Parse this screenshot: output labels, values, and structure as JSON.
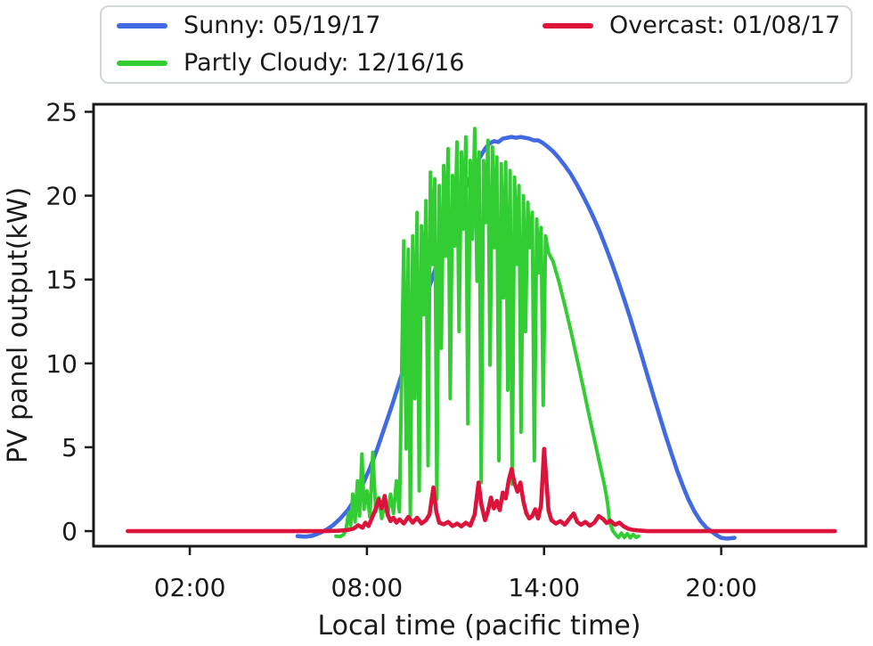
{
  "legend": {
    "items": [
      {
        "label": "Sunny: 05/19/17",
        "color": "#4169e1"
      },
      {
        "label": "Overcast: 01/08/17",
        "color": "#dc143c"
      },
      {
        "label": "Partly Cloudy: 12/16/16",
        "color": "#32cd32"
      }
    ]
  },
  "chart_data": {
    "type": "line",
    "title": "",
    "xlabel": "Local time (pacific time)",
    "ylabel": "PV panel output(kW)",
    "xlim": [
      -1.26,
      24.9
    ],
    "ylim": [
      -0.9,
      25.45
    ],
    "grid": false,
    "legend_position": "top",
    "axis_color": "#1a1a1a",
    "x_ticks": [
      {
        "value": 2,
        "label": "02:00"
      },
      {
        "value": 8,
        "label": "08:00"
      },
      {
        "value": 14,
        "label": "14:00"
      },
      {
        "value": 20,
        "label": "20:00"
      }
    ],
    "y_ticks": [
      {
        "value": 0,
        "label": "0"
      },
      {
        "value": 5,
        "label": "5"
      },
      {
        "value": 10,
        "label": "10"
      },
      {
        "value": 15,
        "label": "15"
      },
      {
        "value": 20,
        "label": "20"
      },
      {
        "value": 25,
        "label": "25"
      }
    ],
    "series": [
      {
        "name": "Sunny: 05/19/17",
        "color": "#4169e1",
        "width": 4.6,
        "points": [
          [
            5.65,
            -0.3
          ],
          [
            5.9,
            -0.33
          ],
          [
            6.15,
            -0.28
          ],
          [
            6.35,
            -0.15
          ],
          [
            6.6,
            0.05
          ],
          [
            6.85,
            0.35
          ],
          [
            7.1,
            0.75
          ],
          [
            7.35,
            1.25
          ],
          [
            7.6,
            1.9
          ],
          [
            7.85,
            2.75
          ],
          [
            8.1,
            3.75
          ],
          [
            8.35,
            4.9
          ],
          [
            8.6,
            6.2
          ],
          [
            8.85,
            7.5
          ],
          [
            9.1,
            8.9
          ],
          [
            9.35,
            10.3
          ],
          [
            9.6,
            11.7
          ],
          [
            9.85,
            13.1
          ],
          [
            10.1,
            14.5
          ],
          [
            10.35,
            15.8
          ],
          [
            10.6,
            17.1
          ],
          [
            10.85,
            18.3
          ],
          [
            11.1,
            19.4
          ],
          [
            11.35,
            20.5
          ],
          [
            11.6,
            21.5
          ],
          [
            11.8,
            22.2
          ],
          [
            12.0,
            22.8
          ],
          [
            12.15,
            23.1
          ],
          [
            12.3,
            23.25
          ],
          [
            12.45,
            23.2
          ],
          [
            12.6,
            23.4
          ],
          [
            12.75,
            23.45
          ],
          [
            12.9,
            23.5
          ],
          [
            13.05,
            23.45
          ],
          [
            13.2,
            23.5
          ],
          [
            13.35,
            23.45
          ],
          [
            13.5,
            23.4
          ],
          [
            13.65,
            23.3
          ],
          [
            13.8,
            23.3
          ],
          [
            13.95,
            23.15
          ],
          [
            14.1,
            22.95
          ],
          [
            14.3,
            22.65
          ],
          [
            14.5,
            22.25
          ],
          [
            14.7,
            21.8
          ],
          [
            14.9,
            21.3
          ],
          [
            15.1,
            20.7
          ],
          [
            15.3,
            20.05
          ],
          [
            15.5,
            19.35
          ],
          [
            15.7,
            18.6
          ],
          [
            15.9,
            17.8
          ],
          [
            16.1,
            16.9
          ],
          [
            16.3,
            15.95
          ],
          [
            16.5,
            14.95
          ],
          [
            16.7,
            13.9
          ],
          [
            16.9,
            12.8
          ],
          [
            17.1,
            11.65
          ],
          [
            17.3,
            10.5
          ],
          [
            17.5,
            9.3
          ],
          [
            17.7,
            8.1
          ],
          [
            17.9,
            6.95
          ],
          [
            18.1,
            5.8
          ],
          [
            18.3,
            4.7
          ],
          [
            18.5,
            3.65
          ],
          [
            18.7,
            2.7
          ],
          [
            18.9,
            1.85
          ],
          [
            19.1,
            1.15
          ],
          [
            19.3,
            0.6
          ],
          [
            19.5,
            0.2
          ],
          [
            19.7,
            -0.05
          ],
          [
            19.85,
            -0.25
          ],
          [
            20.0,
            -0.4
          ],
          [
            20.2,
            -0.45
          ],
          [
            20.45,
            -0.4
          ]
        ]
      },
      {
        "name": "Partly Cloudy: 12/16/16",
        "color": "#32cd32",
        "width": 4.0,
        "points": [
          [
            6.95,
            -0.3
          ],
          [
            7.1,
            -0.32
          ],
          [
            7.22,
            -0.2
          ],
          [
            7.3,
            0.2
          ],
          [
            7.38,
            1.1
          ],
          [
            7.45,
            0.35
          ],
          [
            7.52,
            2.2
          ],
          [
            7.6,
            0.55
          ],
          [
            7.68,
            3.0
          ],
          [
            7.75,
            0.9
          ],
          [
            7.83,
            4.6
          ],
          [
            7.9,
            1.3
          ],
          [
            8.0,
            2.4
          ],
          [
            8.1,
            0.85
          ],
          [
            8.2,
            4.7
          ],
          [
            8.3,
            1.15
          ],
          [
            8.4,
            2.0
          ],
          [
            8.5,
            0.75
          ],
          [
            8.6,
            1.6
          ],
          [
            8.7,
            0.95
          ],
          [
            8.8,
            2.2
          ],
          [
            8.9,
            1.05
          ],
          [
            9.0,
            3.0
          ],
          [
            9.1,
            1.15
          ],
          [
            9.25,
            17.3
          ],
          [
            9.33,
            4.9
          ],
          [
            9.4,
            16.8
          ],
          [
            9.47,
            0.9
          ],
          [
            9.55,
            17.6
          ],
          [
            9.62,
            7.9
          ],
          [
            9.7,
            19.0
          ],
          [
            9.77,
            2.4
          ],
          [
            9.85,
            18.2
          ],
          [
            9.92,
            12.9
          ],
          [
            10.0,
            19.7
          ],
          [
            10.07,
            3.9
          ],
          [
            10.15,
            21.4
          ],
          [
            10.22,
            15.9
          ],
          [
            10.3,
            21.0
          ],
          [
            10.37,
            1.9
          ],
          [
            10.45,
            20.6
          ],
          [
            10.52,
            10.9
          ],
          [
            10.6,
            21.8
          ],
          [
            10.67,
            16.4
          ],
          [
            10.75,
            22.8
          ],
          [
            10.82,
            7.9
          ],
          [
            10.9,
            21.2
          ],
          [
            10.97,
            17.0
          ],
          [
            11.05,
            23.2
          ],
          [
            11.12,
            11.9
          ],
          [
            11.2,
            22.6
          ],
          [
            11.27,
            18.0
          ],
          [
            11.35,
            23.5
          ],
          [
            11.42,
            6.4
          ],
          [
            11.5,
            22.1
          ],
          [
            11.57,
            17.4
          ],
          [
            11.65,
            24.0
          ],
          [
            11.73,
            14.9
          ],
          [
            11.8,
            22.6
          ],
          [
            11.87,
            2.9
          ],
          [
            11.95,
            22.1
          ],
          [
            12.02,
            18.4
          ],
          [
            12.1,
            23.3
          ],
          [
            12.17,
            9.9
          ],
          [
            12.25,
            22.9
          ],
          [
            12.32,
            16.9
          ],
          [
            12.4,
            22.3
          ],
          [
            12.47,
            4.2
          ],
          [
            12.55,
            21.9
          ],
          [
            12.62,
            13.9
          ],
          [
            12.7,
            22.0
          ],
          [
            12.77,
            8.4
          ],
          [
            12.85,
            21.5
          ],
          [
            12.92,
            2.8
          ],
          [
            13.0,
            21.1
          ],
          [
            13.07,
            15.9
          ],
          [
            13.15,
            20.6
          ],
          [
            13.22,
            5.9
          ],
          [
            13.3,
            20.0
          ],
          [
            13.37,
            11.9
          ],
          [
            13.45,
            19.6
          ],
          [
            13.52,
            16.9
          ],
          [
            13.6,
            19.0
          ],
          [
            13.67,
            4.2
          ],
          [
            13.75,
            18.6
          ],
          [
            13.82,
            15.4
          ],
          [
            13.9,
            18.1
          ],
          [
            13.97,
            7.5
          ],
          [
            14.05,
            17.6
          ],
          [
            14.15,
            16.6
          ],
          [
            14.3,
            16.1
          ],
          [
            14.5,
            14.9
          ],
          [
            14.7,
            13.5
          ],
          [
            14.9,
            12.0
          ],
          [
            15.1,
            10.4
          ],
          [
            15.3,
            8.8
          ],
          [
            15.5,
            7.1
          ],
          [
            15.7,
            5.5
          ],
          [
            15.9,
            3.9
          ],
          [
            16.05,
            2.7
          ],
          [
            16.15,
            1.7
          ],
          [
            16.22,
            0.55
          ],
          [
            16.32,
            0.05
          ],
          [
            16.42,
            -0.2
          ],
          [
            16.52,
            -0.38
          ],
          [
            16.62,
            -0.12
          ],
          [
            16.72,
            -0.38
          ],
          [
            16.82,
            -0.15
          ],
          [
            16.92,
            -0.4
          ],
          [
            17.02,
            -0.2
          ],
          [
            17.12,
            -0.38
          ],
          [
            17.2,
            -0.3
          ]
        ]
      },
      {
        "name": "Overcast: 01/08/17",
        "color": "#dc143c",
        "width": 4.6,
        "points": [
          [
            -0.1,
            0.0
          ],
          [
            0.5,
            0.0
          ],
          [
            1.5,
            0.0
          ],
          [
            2.5,
            0.0
          ],
          [
            3.5,
            0.0
          ],
          [
            4.5,
            0.0
          ],
          [
            5.5,
            0.0
          ],
          [
            6.5,
            0.0
          ],
          [
            7.0,
            0.02
          ],
          [
            7.3,
            0.05
          ],
          [
            7.55,
            0.15
          ],
          [
            7.7,
            0.35
          ],
          [
            7.85,
            0.2
          ],
          [
            7.95,
            0.5
          ],
          [
            8.05,
            0.3
          ],
          [
            8.15,
            0.7
          ],
          [
            8.28,
            1.25
          ],
          [
            8.4,
            1.9
          ],
          [
            8.5,
            1.35
          ],
          [
            8.6,
            2.1
          ],
          [
            8.7,
            1.0
          ],
          [
            8.8,
            0.6
          ],
          [
            8.9,
            0.8
          ],
          [
            9.0,
            0.5
          ],
          [
            9.1,
            0.7
          ],
          [
            9.25,
            0.45
          ],
          [
            9.4,
            0.85
          ],
          [
            9.55,
            0.5
          ],
          [
            9.7,
            0.8
          ],
          [
            9.85,
            0.45
          ],
          [
            10.0,
            0.65
          ],
          [
            10.12,
            1.0
          ],
          [
            10.25,
            2.6
          ],
          [
            10.35,
            1.15
          ],
          [
            10.45,
            0.5
          ],
          [
            10.6,
            0.4
          ],
          [
            10.75,
            0.55
          ],
          [
            10.9,
            0.3
          ],
          [
            11.05,
            0.45
          ],
          [
            11.2,
            0.28
          ],
          [
            11.35,
            0.5
          ],
          [
            11.5,
            0.32
          ],
          [
            11.65,
            1.0
          ],
          [
            11.78,
            2.9
          ],
          [
            11.88,
            1.55
          ],
          [
            12.0,
            0.65
          ],
          [
            12.1,
            1.2
          ],
          [
            12.2,
            2.0
          ],
          [
            12.3,
            1.35
          ],
          [
            12.4,
            1.8
          ],
          [
            12.5,
            1.25
          ],
          [
            12.6,
            2.3
          ],
          [
            12.7,
            1.95
          ],
          [
            12.8,
            3.0
          ],
          [
            12.9,
            3.7
          ],
          [
            13.0,
            2.85
          ],
          [
            13.1,
            2.35
          ],
          [
            13.2,
            2.9
          ],
          [
            13.3,
            1.75
          ],
          [
            13.4,
            1.05
          ],
          [
            13.5,
            0.75
          ],
          [
            13.6,
            0.9
          ],
          [
            13.7,
            1.3
          ],
          [
            13.8,
            0.75
          ],
          [
            13.9,
            1.55
          ],
          [
            14.0,
            4.9
          ],
          [
            14.07,
            3.2
          ],
          [
            14.15,
            1.25
          ],
          [
            14.25,
            0.65
          ],
          [
            14.4,
            0.45
          ],
          [
            14.55,
            0.6
          ],
          [
            14.7,
            0.38
          ],
          [
            14.85,
            0.72
          ],
          [
            15.0,
            1.05
          ],
          [
            15.12,
            0.55
          ],
          [
            15.25,
            0.38
          ],
          [
            15.4,
            0.55
          ],
          [
            15.55,
            0.32
          ],
          [
            15.7,
            0.5
          ],
          [
            15.85,
            0.9
          ],
          [
            16.0,
            0.72
          ],
          [
            16.12,
            0.48
          ],
          [
            16.25,
            0.62
          ],
          [
            16.4,
            0.38
          ],
          [
            16.55,
            0.5
          ],
          [
            16.7,
            0.28
          ],
          [
            16.85,
            0.14
          ],
          [
            17.0,
            0.08
          ],
          [
            17.2,
            0.04
          ],
          [
            17.5,
            0.0
          ],
          [
            18.5,
            0.0
          ],
          [
            20.0,
            0.0
          ],
          [
            22.0,
            0.0
          ],
          [
            23.85,
            0.0
          ]
        ]
      }
    ]
  }
}
